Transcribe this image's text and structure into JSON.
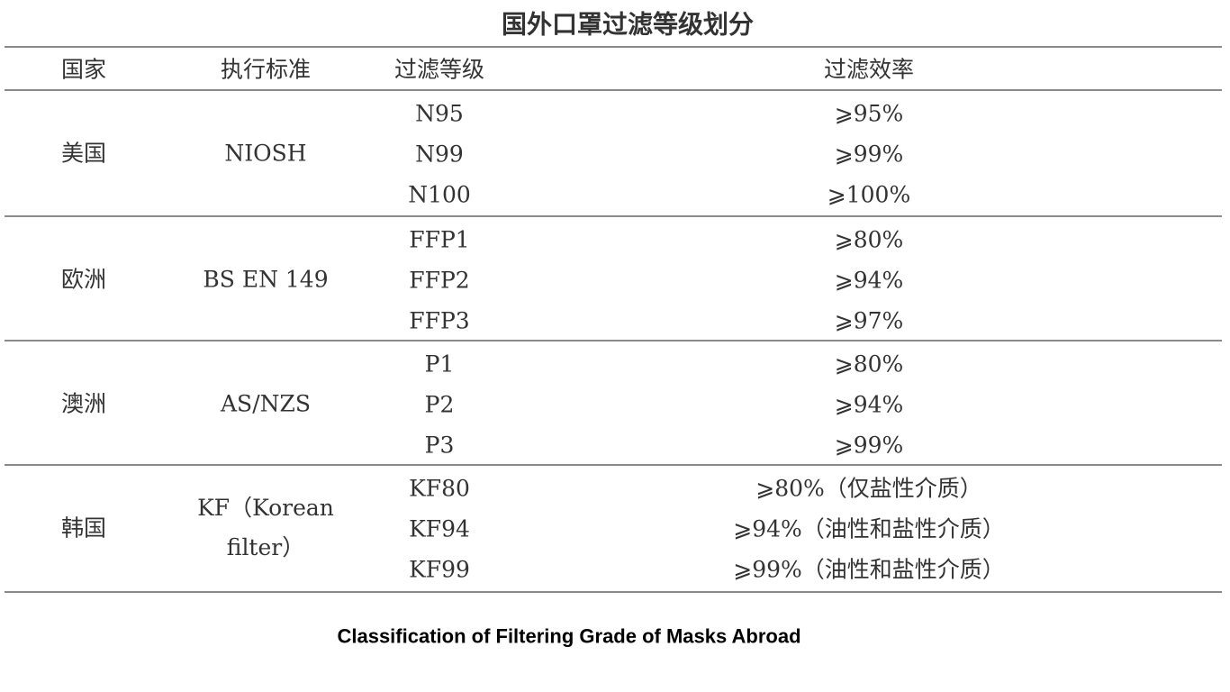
{
  "title": "国外口罩过滤等级划分",
  "header": [
    "国家",
    "执行标准",
    "过滤等级",
    "过滤效率"
  ],
  "groups": [
    {
      "country": "美国",
      "standard": "NIOSH",
      "rows": [
        [
          "N95",
          "⩾95%"
        ],
        [
          "N99",
          "⩾99%"
        ],
        [
          "N100",
          "⩾100%"
        ]
      ]
    },
    {
      "country": "欧洲",
      "standard": "BS EN 149",
      "rows": [
        [
          "FFP1",
          "⩾80%"
        ],
        [
          "FFP2",
          "⩾94%"
        ],
        [
          "FFP3",
          "⩾97%"
        ]
      ]
    },
    {
      "country": "澳洲",
      "standard": "AS/NZS",
      "rows": [
        [
          "P1",
          "⩾80%"
        ],
        [
          "P2",
          "⩾94%"
        ],
        [
          "P3",
          "⩾99%"
        ]
      ]
    },
    {
      "country": "韩国",
      "standard": "KF（Korean filter）",
      "rows": [
        [
          "KF80",
          "⩾80%（仅盐性介质）"
        ],
        [
          "KF94",
          "⩾94%（油性和盐性介质）"
        ],
        [
          "KF99",
          "⩾99%（油性和盐性介质）"
        ]
      ]
    }
  ],
  "caption": "Classification of Filtering Grade of Masks Abroad"
}
